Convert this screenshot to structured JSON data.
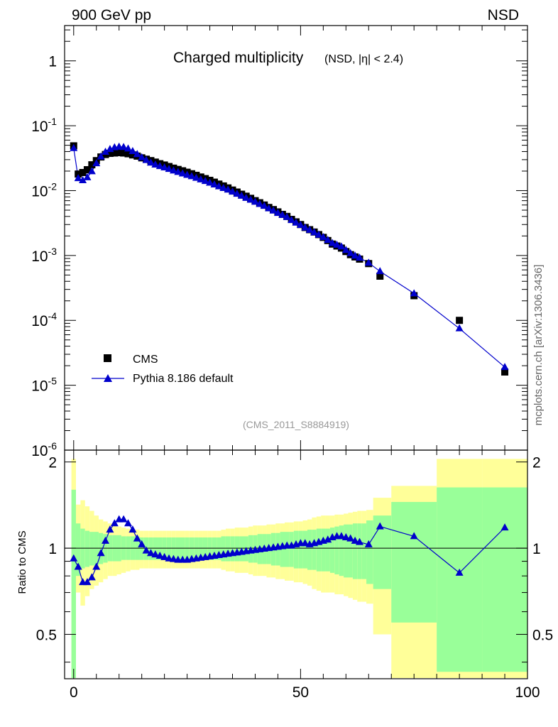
{
  "header": {
    "left_label": "900 GeV pp",
    "right_label": "NSD"
  },
  "side_label": "mcplots.cern.ch [arXiv:1306.3436]",
  "chart_data": [
    {
      "type": "scatter",
      "title": "Charged multiplicity",
      "subtitle": "(NSD, |η| < 2.4)",
      "watermark": "(CMS_2011_S8884919)",
      "xlim": [
        -2,
        100
      ],
      "ylim": [
        1e-06,
        3.5
      ],
      "yscale": "log",
      "ytick_labels": [
        "1",
        "10^-1",
        "10^-2",
        "10^-3",
        "10^-4",
        "10^-5",
        "10^-6"
      ],
      "legend_position": "bottom-left",
      "series": [
        {
          "name": "CMS",
          "marker": "square",
          "color": "#000000",
          "x": [
            0,
            1,
            2,
            3,
            4,
            5,
            6,
            7,
            8,
            9,
            10,
            11,
            12,
            13,
            14,
            15,
            16,
            17,
            18,
            19,
            20,
            21,
            22,
            23,
            24,
            25,
            26,
            27,
            28,
            29,
            30,
            31,
            32,
            33,
            34,
            35,
            36,
            37,
            38,
            39,
            40,
            41,
            42,
            43,
            44,
            45,
            46,
            47,
            48,
            49,
            50,
            51,
            52,
            53,
            54,
            55,
            56,
            57,
            58,
            59,
            60,
            61,
            62,
            63,
            65,
            67.5,
            75,
            85,
            95
          ],
          "y": [
            0.049,
            0.018,
            0.019,
            0.021,
            0.025,
            0.029,
            0.033,
            0.036,
            0.0375,
            0.038,
            0.0385,
            0.038,
            0.037,
            0.0355,
            0.034,
            0.032,
            0.0305,
            0.029,
            0.0275,
            0.026,
            0.0248,
            0.0235,
            0.0222,
            0.0212,
            0.0202,
            0.0192,
            0.0182,
            0.0172,
            0.0162,
            0.0153,
            0.0144,
            0.0135,
            0.0126,
            0.0118,
            0.011,
            0.0102,
            0.0095,
            0.0088,
            0.0082,
            0.0076,
            0.007,
            0.0065,
            0.006,
            0.0055,
            0.0051,
            0.0047,
            0.0043,
            0.004,
            0.0036,
            0.0033,
            0.003,
            0.0027,
            0.0025,
            0.0023,
            0.0021,
            0.0019,
            0.0017,
            0.0015,
            0.0014,
            0.0013,
            0.00115,
            0.00103,
            0.00095,
            0.00088,
            0.00075,
            0.00048,
            0.00024,
            0.0001,
            1.6e-05
          ]
        },
        {
          "name": "Pythia 8.186 default",
          "marker": "triangle",
          "color": "#0000cc",
          "x": [
            0,
            1,
            2,
            3,
            4,
            5,
            6,
            7,
            8,
            9,
            10,
            11,
            12,
            13,
            14,
            15,
            16,
            17,
            18,
            19,
            20,
            21,
            22,
            23,
            24,
            25,
            26,
            27,
            28,
            29,
            30,
            31,
            32,
            33,
            34,
            35,
            36,
            37,
            38,
            39,
            40,
            41,
            42,
            43,
            44,
            45,
            46,
            47,
            48,
            49,
            50,
            51,
            52,
            53,
            54,
            55,
            56,
            57,
            58,
            59,
            60,
            61,
            62,
            63,
            65,
            67.5,
            75,
            85,
            95
          ],
          "y": [
            0.045,
            0.0155,
            0.0144,
            0.016,
            0.0198,
            0.0263,
            0.0334,
            0.0394,
            0.0435,
            0.0463,
            0.0474,
            0.0468,
            0.0444,
            0.0405,
            0.0364,
            0.0325,
            0.0294,
            0.0269,
            0.0251,
            0.0238,
            0.0227,
            0.0215,
            0.0203,
            0.0193,
            0.0183,
            0.0174,
            0.0166,
            0.0157,
            0.0148,
            0.014,
            0.0132,
            0.0124,
            0.0116,
            0.0109,
            0.0103,
            0.0096,
            0.0089,
            0.0083,
            0.0077,
            0.0072,
            0.0067,
            0.0062,
            0.0058,
            0.0053,
            0.0049,
            0.0045,
            0.0042,
            0.0039,
            0.0035,
            0.0032,
            0.00294,
            0.00269,
            0.00248,
            0.00227,
            0.00208,
            0.00191,
            0.00173,
            0.00155,
            0.00146,
            0.00137,
            0.00121,
            0.00108,
            0.00099,
            0.00092,
            0.00077,
            0.00057,
            0.00026,
            7.5e-05,
            1.9e-05
          ]
        }
      ]
    },
    {
      "type": "line",
      "ylabel": "Ratio to CMS",
      "xlim": [
        -2,
        100
      ],
      "ylim": [
        0.35,
        2.2
      ],
      "xtick_labels": [
        "0",
        "50",
        "100"
      ],
      "ytick_labels": [
        "2",
        "1",
        "0.5"
      ],
      "reference_line": 1,
      "band_colors": {
        "inner": "#99ff99",
        "outer": "#ffff99"
      },
      "bands": {
        "x_edges": [
          -0.5,
          0.5,
          1.5,
          2.5,
          3.5,
          4.5,
          5.5,
          6.5,
          7.5,
          8.5,
          9.5,
          10.5,
          11.5,
          12.5,
          13.5,
          14.5,
          15.5,
          16.5,
          17.5,
          18.5,
          19.5,
          20.5,
          21.5,
          22.5,
          23.5,
          24.5,
          25.5,
          26.5,
          27.5,
          28.5,
          29.5,
          30.5,
          31.5,
          32.5,
          33.5,
          34.5,
          35.5,
          36.5,
          37.5,
          38.5,
          39.5,
          40.5,
          41.5,
          42.5,
          43.5,
          44.5,
          45.5,
          46.5,
          47.5,
          48.5,
          49.5,
          50.5,
          51.5,
          52.5,
          53.5,
          54.5,
          55.5,
          56.5,
          57.5,
          58.5,
          59.5,
          60.5,
          61.5,
          62.5,
          63.5,
          64.5,
          66,
          70,
          80,
          90,
          100
        ],
        "inner_lo": [
          0.35,
          0.8,
          0.85,
          0.86,
          0.87,
          0.87,
          0.88,
          0.89,
          0.9,
          0.9,
          0.9,
          0.91,
          0.91,
          0.91,
          0.91,
          0.91,
          0.91,
          0.91,
          0.91,
          0.91,
          0.91,
          0.91,
          0.91,
          0.91,
          0.91,
          0.91,
          0.91,
          0.91,
          0.91,
          0.91,
          0.91,
          0.91,
          0.91,
          0.9,
          0.9,
          0.9,
          0.9,
          0.9,
          0.9,
          0.89,
          0.89,
          0.88,
          0.88,
          0.88,
          0.87,
          0.87,
          0.86,
          0.86,
          0.86,
          0.85,
          0.85,
          0.85,
          0.84,
          0.84,
          0.83,
          0.83,
          0.83,
          0.82,
          0.81,
          0.8,
          0.79,
          0.79,
          0.78,
          0.78,
          0.78,
          0.75,
          0.72,
          0.55,
          0.37,
          0.37
        ],
        "inner_hi": [
          1.6,
          1.22,
          1.17,
          1.15,
          1.14,
          1.14,
          1.13,
          1.12,
          1.11,
          1.11,
          1.11,
          1.1,
          1.1,
          1.1,
          1.1,
          1.09,
          1.09,
          1.09,
          1.09,
          1.09,
          1.09,
          1.09,
          1.09,
          1.09,
          1.09,
          1.09,
          1.09,
          1.09,
          1.09,
          1.09,
          1.09,
          1.09,
          1.09,
          1.1,
          1.1,
          1.1,
          1.1,
          1.1,
          1.1,
          1.11,
          1.11,
          1.12,
          1.12,
          1.12,
          1.13,
          1.13,
          1.14,
          1.14,
          1.14,
          1.15,
          1.15,
          1.15,
          1.16,
          1.16,
          1.17,
          1.17,
          1.17,
          1.18,
          1.19,
          1.2,
          1.21,
          1.21,
          1.22,
          1.22,
          1.22,
          1.25,
          1.3,
          1.45,
          1.63,
          1.63
        ],
        "outer_lo": [
          0.35,
          0.7,
          0.63,
          0.68,
          0.72,
          0.74,
          0.76,
          0.78,
          0.8,
          0.8,
          0.81,
          0.82,
          0.83,
          0.84,
          0.84,
          0.85,
          0.85,
          0.85,
          0.85,
          0.85,
          0.85,
          0.85,
          0.85,
          0.85,
          0.85,
          0.85,
          0.85,
          0.85,
          0.85,
          0.85,
          0.85,
          0.85,
          0.85,
          0.84,
          0.83,
          0.83,
          0.82,
          0.82,
          0.82,
          0.81,
          0.8,
          0.8,
          0.8,
          0.79,
          0.79,
          0.78,
          0.78,
          0.77,
          0.77,
          0.76,
          0.76,
          0.75,
          0.74,
          0.72,
          0.71,
          0.7,
          0.7,
          0.7,
          0.69,
          0.69,
          0.68,
          0.67,
          0.66,
          0.65,
          0.65,
          0.64,
          0.5,
          0.35,
          0.35,
          0.35
        ],
        "outer_hi": [
          2.05,
          1.42,
          1.47,
          1.4,
          1.35,
          1.3,
          1.26,
          1.24,
          1.22,
          1.2,
          1.19,
          1.18,
          1.17,
          1.16,
          1.16,
          1.15,
          1.15,
          1.15,
          1.15,
          1.15,
          1.15,
          1.15,
          1.15,
          1.15,
          1.15,
          1.15,
          1.15,
          1.15,
          1.15,
          1.15,
          1.15,
          1.15,
          1.15,
          1.16,
          1.17,
          1.17,
          1.18,
          1.18,
          1.18,
          1.19,
          1.2,
          1.2,
          1.2,
          1.21,
          1.21,
          1.22,
          1.22,
          1.23,
          1.23,
          1.24,
          1.24,
          1.25,
          1.26,
          1.28,
          1.29,
          1.3,
          1.3,
          1.3,
          1.31,
          1.31,
          1.32,
          1.33,
          1.34,
          1.35,
          1.35,
          1.36,
          1.5,
          1.65,
          2.05,
          2.05
        ]
      },
      "series": [
        {
          "name": "Pythia 8.186 default",
          "marker": "triangle",
          "color": "#0000cc",
          "x": [
            0,
            1,
            2,
            3,
            4,
            5,
            6,
            7,
            8,
            9,
            10,
            11,
            12,
            13,
            14,
            15,
            16,
            17,
            18,
            19,
            20,
            21,
            22,
            23,
            24,
            25,
            26,
            27,
            28,
            29,
            30,
            31,
            32,
            33,
            34,
            35,
            36,
            37,
            38,
            39,
            40,
            41,
            42,
            43,
            44,
            45,
            46,
            47,
            48,
            49,
            50,
            51,
            52,
            53,
            54,
            55,
            56,
            57,
            58,
            59,
            60,
            61,
            62,
            63,
            65,
            67.5,
            75,
            85,
            95
          ],
          "y": [
            0.92,
            0.86,
            0.76,
            0.76,
            0.79,
            0.86,
            0.96,
            1.06,
            1.16,
            1.22,
            1.26,
            1.26,
            1.22,
            1.16,
            1.08,
            1.03,
            0.98,
            0.96,
            0.95,
            0.94,
            0.93,
            0.92,
            0.915,
            0.91,
            0.91,
            0.91,
            0.915,
            0.92,
            0.925,
            0.93,
            0.935,
            0.94,
            0.945,
            0.95,
            0.955,
            0.96,
            0.965,
            0.97,
            0.975,
            0.98,
            0.985,
            0.99,
            0.995,
            1.0,
            1.005,
            1.01,
            1.015,
            1.02,
            1.02,
            1.03,
            1.04,
            1.04,
            1.03,
            1.04,
            1.05,
            1.06,
            1.07,
            1.09,
            1.1,
            1.1,
            1.09,
            1.08,
            1.06,
            1.05,
            1.03,
            1.19,
            1.1,
            0.82,
            1.18
          ]
        }
      ]
    }
  ]
}
